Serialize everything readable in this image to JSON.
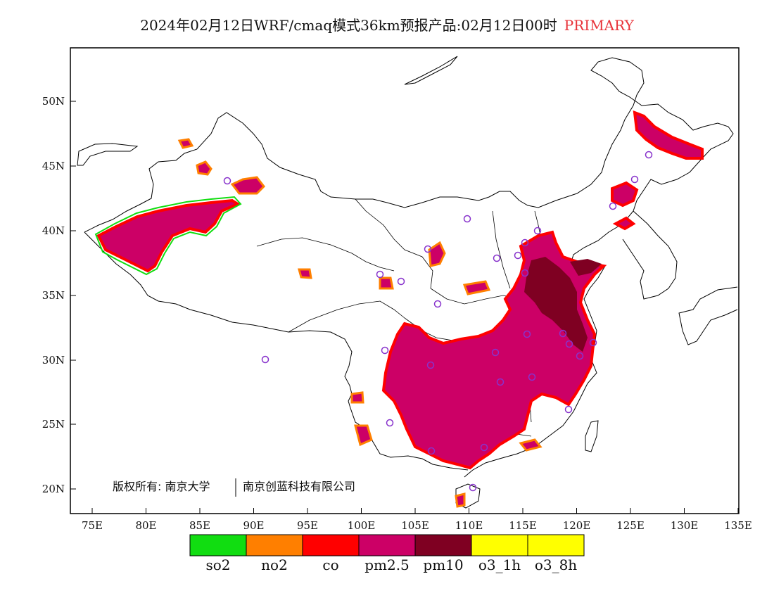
{
  "title": {
    "main": "2024年02月12日WRF/cmaq模式36km预报产品:02月12日00时",
    "tag": "PRIMARY",
    "tag_color": "#e8333a"
  },
  "axes": {
    "lat_labels": [
      "50N",
      "45N",
      "40N",
      "35N",
      "30N",
      "25N",
      "20N"
    ],
    "lon_labels": [
      "75E",
      "80E",
      "85E",
      "90E",
      "95E",
      "100E",
      "105E",
      "110E",
      "115E",
      "120E",
      "125E",
      "130E",
      "135E"
    ]
  },
  "copyright": {
    "left": "版权所有: 南京大学",
    "right": "南京创蓝科技有限公司"
  },
  "legend": [
    {
      "label": "so2",
      "color": "#11dd11"
    },
    {
      "label": "no2",
      "color": "#ff7f00"
    },
    {
      "label": "co",
      "color": "#ff0000"
    },
    {
      "label": "pm2.5",
      "color": "#cc0066"
    },
    {
      "label": "pm10",
      "color": "#7f0022"
    },
    {
      "label": "o3_1h",
      "color": "#ffff00"
    },
    {
      "label": "o3_8h",
      "color": "#ffff00"
    }
  ],
  "colors": {
    "pm25": "#cc0066",
    "pm10": "#7f0022",
    "co": "#ff0000",
    "no2": "#ff7f00",
    "so2": "#11dd11",
    "station": "#8833cc"
  }
}
